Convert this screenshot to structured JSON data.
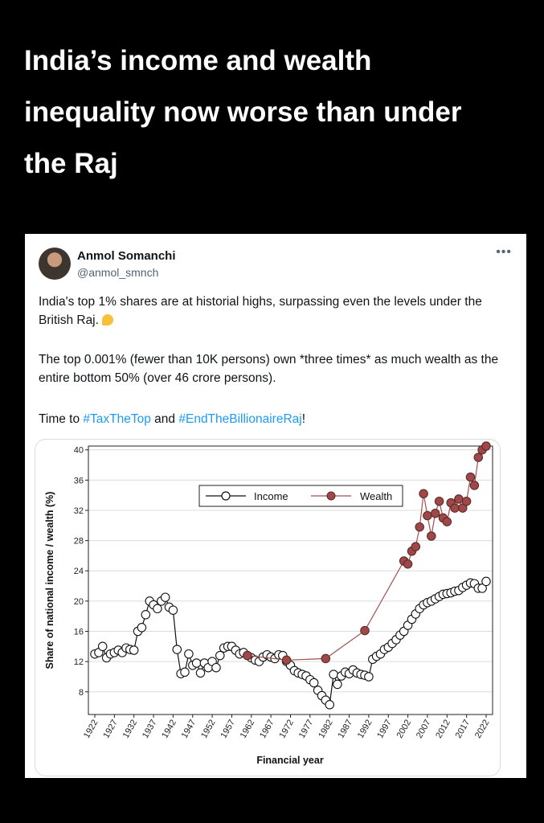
{
  "headline": {
    "line1": "India’s income and wealth",
    "line2": "inequality now worse than under",
    "line3": "the Raj"
  },
  "tweet": {
    "author_name": "Anmol Somanchi",
    "author_handle": "@anmol_smnch",
    "more_icon": "•••",
    "paragraph1": "India's top 1% shares are at historial highs, surpassing even the levels under the British Raj.",
    "paragraph2": "The top 0.001% (fewer than 10K persons) own *three times* as much wealth as the entire bottom 50% (over 46 crore persons).",
    "p3_prefix": "Time to ",
    "hashtag1": "#TaxTheTop",
    "p3_middle": " and ",
    "hashtag2": "#EndTheBillionaireRaj",
    "p3_suffix": "!",
    "emoji_icon": "backhand-index-pointing-down-icon"
  },
  "chart_data": {
    "type": "line",
    "xlabel": "Financial year",
    "ylabel": "Share of national income / wealth (%)",
    "xlim": [
      1922,
      2022
    ],
    "ylim": [
      5,
      40.5
    ],
    "x_ticks": [
      1922,
      1927,
      1932,
      1937,
      1942,
      1947,
      1952,
      1957,
      1962,
      1967,
      1972,
      1977,
      1982,
      1987,
      1992,
      1997,
      2002,
      2007,
      2012,
      2017,
      2022
    ],
    "y_ticks": [
      8,
      12,
      16,
      20,
      24,
      28,
      32,
      36,
      40
    ],
    "grid": true,
    "legend_position": "top-center",
    "series": [
      {
        "name": "Income",
        "color": "#111111",
        "marker_fill": "#ffffff",
        "x": [
          1922,
          1923,
          1924,
          1925,
          1926,
          1927,
          1928,
          1929,
          1930,
          1931,
          1932,
          1933,
          1934,
          1935,
          1936,
          1937,
          1938,
          1939,
          1940,
          1941,
          1942,
          1943,
          1944,
          1945,
          1946,
          1947,
          1948,
          1949,
          1950,
          1951,
          1952,
          1953,
          1954,
          1955,
          1956,
          1957,
          1958,
          1959,
          1960,
          1961,
          1962,
          1963,
          1964,
          1965,
          1966,
          1967,
          1968,
          1969,
          1970,
          1971,
          1972,
          1973,
          1974,
          1975,
          1976,
          1977,
          1978,
          1979,
          1980,
          1981,
          1982,
          1983,
          1984,
          1985,
          1986,
          1987,
          1988,
          1989,
          1990,
          1991,
          1992,
          1993,
          1994,
          1995,
          1996,
          1997,
          1998,
          1999,
          2000,
          2001,
          2002,
          2003,
          2004,
          2005,
          2006,
          2007,
          2008,
          2009,
          2010,
          2011,
          2012,
          2013,
          2014,
          2015,
          2016,
          2017,
          2018,
          2019,
          2020,
          2021,
          2022
        ],
        "y": [
          13.0,
          13.2,
          14.0,
          12.5,
          13.0,
          13.2,
          13.5,
          13.2,
          13.8,
          13.6,
          13.5,
          16.0,
          16.5,
          18.2,
          20.0,
          19.5,
          19.0,
          20.0,
          20.5,
          19.2,
          18.8,
          13.6,
          10.4,
          10.6,
          13.0,
          11.5,
          11.8,
          10.5,
          11.8,
          11.2,
          12.0,
          11.2,
          12.8,
          13.8,
          14.0,
          14.0,
          13.5,
          13.0,
          13.2,
          12.8,
          12.5,
          12.2,
          12.0,
          12.6,
          12.9,
          12.6,
          12.4,
          12.9,
          12.8,
          12.0,
          11.5,
          10.8,
          10.5,
          10.3,
          10.1,
          9.6,
          9.2,
          8.2,
          7.5,
          6.9,
          6.3,
          10.3,
          9.0,
          10.1,
          10.6,
          10.4,
          10.9,
          10.5,
          10.3,
          10.2,
          10.0,
          12.3,
          12.7,
          13.0,
          13.6,
          13.9,
          14.4,
          14.9,
          15.5,
          16.0,
          16.8,
          17.6,
          18.3,
          19.0,
          19.5,
          19.8,
          20.0,
          20.3,
          20.6,
          20.9,
          21.0,
          21.1,
          21.3,
          21.4,
          21.8,
          22.1,
          22.4,
          22.3,
          21.7,
          21.7,
          22.6
        ]
      },
      {
        "name": "Wealth",
        "color": "#a05050",
        "marker_fill": "#a04848",
        "x": [
          1961,
          1971,
          1981,
          1991,
          2001,
          2002,
          2003,
          2004,
          2005,
          2006,
          2007,
          2008,
          2009,
          2010,
          2011,
          2012,
          2013,
          2014,
          2015,
          2016,
          2017,
          2018,
          2019,
          2020,
          2021,
          2022
        ],
        "y": [
          12.8,
          12.2,
          12.4,
          16.1,
          25.3,
          24.9,
          26.6,
          27.2,
          29.8,
          34.2,
          31.3,
          28.6,
          31.6,
          33.2,
          31.0,
          30.5,
          33.0,
          32.3,
          33.5,
          32.3,
          33.2,
          36.4,
          35.3,
          39.0,
          40.0,
          40.5
        ]
      }
    ]
  }
}
